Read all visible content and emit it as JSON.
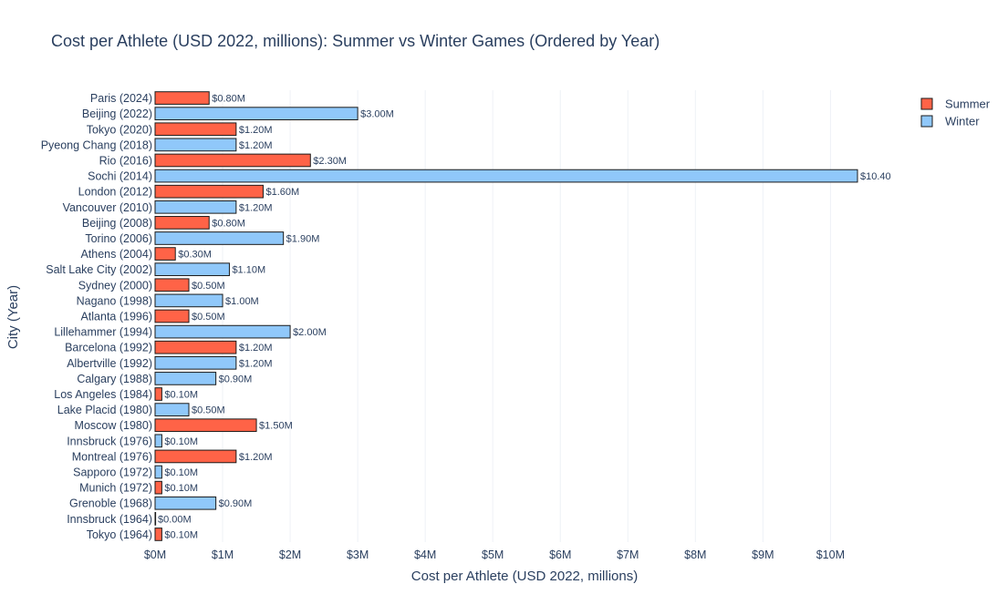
{
  "chart_data": {
    "type": "bar",
    "orientation": "horizontal",
    "title": "Cost per Athlete (USD 2022, millions): Summer vs Winter Games (Ordered by Year)",
    "xlabel": "Cost per Athlete (USD 2022, millions)",
    "ylabel": "City (Year)",
    "xlim": [
      0,
      10.4
    ],
    "xticks": [
      {
        "value": 0,
        "label": "$0M"
      },
      {
        "value": 1,
        "label": "$1M"
      },
      {
        "value": 2,
        "label": "$2M"
      },
      {
        "value": 3,
        "label": "$3M"
      },
      {
        "value": 4,
        "label": "$4M"
      },
      {
        "value": 5,
        "label": "$5M"
      },
      {
        "value": 6,
        "label": "$6M"
      },
      {
        "value": 7,
        "label": "$7M"
      },
      {
        "value": 8,
        "label": "$8M"
      },
      {
        "value": 9,
        "label": "$9M"
      },
      {
        "value": 10,
        "label": "$10M"
      }
    ],
    "legend_position": "top-right",
    "series": [
      {
        "name": "Summer",
        "color": "#ff6347"
      },
      {
        "name": "Winter",
        "color": "#90c8fa"
      }
    ],
    "bars": [
      {
        "category": "Paris (2024)",
        "series": "Summer",
        "value": 0.8,
        "label": "$0.80M"
      },
      {
        "category": "Beijing (2022)",
        "series": "Winter",
        "value": 3.0,
        "label": "$3.00M"
      },
      {
        "category": "Tokyo (2020)",
        "series": "Summer",
        "value": 1.2,
        "label": "$1.20M"
      },
      {
        "category": "Pyeong Chang (2018)",
        "series": "Winter",
        "value": 1.2,
        "label": "$1.20M"
      },
      {
        "category": "Rio (2016)",
        "series": "Summer",
        "value": 2.3,
        "label": "$2.30M"
      },
      {
        "category": "Sochi (2014)",
        "series": "Winter",
        "value": 10.4,
        "label": "$10.40"
      },
      {
        "category": "London (2012)",
        "series": "Summer",
        "value": 1.6,
        "label": "$1.60M"
      },
      {
        "category": "Vancouver (2010)",
        "series": "Winter",
        "value": 1.2,
        "label": "$1.20M"
      },
      {
        "category": "Beijing (2008)",
        "series": "Summer",
        "value": 0.8,
        "label": "$0.80M"
      },
      {
        "category": "Torino (2006)",
        "series": "Winter",
        "value": 1.9,
        "label": "$1.90M"
      },
      {
        "category": "Athens (2004)",
        "series": "Summer",
        "value": 0.3,
        "label": "$0.30M"
      },
      {
        "category": "Salt Lake City (2002)",
        "series": "Winter",
        "value": 1.1,
        "label": "$1.10M"
      },
      {
        "category": "Sydney (2000)",
        "series": "Summer",
        "value": 0.5,
        "label": "$0.50M"
      },
      {
        "category": "Nagano (1998)",
        "series": "Winter",
        "value": 1.0,
        "label": "$1.00M"
      },
      {
        "category": "Atlanta (1996)",
        "series": "Summer",
        "value": 0.5,
        "label": "$0.50M"
      },
      {
        "category": "Lillehammer (1994)",
        "series": "Winter",
        "value": 2.0,
        "label": "$2.00M"
      },
      {
        "category": "Barcelona (1992)",
        "series": "Summer",
        "value": 1.2,
        "label": "$1.20M"
      },
      {
        "category": "Albertville (1992)",
        "series": "Winter",
        "value": 1.2,
        "label": "$1.20M"
      },
      {
        "category": "Calgary (1988)",
        "series": "Winter",
        "value": 0.9,
        "label": "$0.90M"
      },
      {
        "category": "Los Angeles (1984)",
        "series": "Summer",
        "value": 0.1,
        "label": "$0.10M"
      },
      {
        "category": "Lake Placid (1980)",
        "series": "Winter",
        "value": 0.5,
        "label": "$0.50M"
      },
      {
        "category": "Moscow (1980)",
        "series": "Summer",
        "value": 1.5,
        "label": "$1.50M"
      },
      {
        "category": "Innsbruck (1976)",
        "series": "Winter",
        "value": 0.1,
        "label": "$0.10M"
      },
      {
        "category": "Montreal (1976)",
        "series": "Summer",
        "value": 1.2,
        "label": "$1.20M"
      },
      {
        "category": "Sapporo (1972)",
        "series": "Winter",
        "value": 0.1,
        "label": "$0.10M"
      },
      {
        "category": "Munich (1972)",
        "series": "Summer",
        "value": 0.1,
        "label": "$0.10M"
      },
      {
        "category": "Grenoble (1968)",
        "series": "Winter",
        "value": 0.9,
        "label": "$0.90M"
      },
      {
        "category": "Innsbruck (1964)",
        "series": "Winter",
        "value": 0.0,
        "label": "$0.00M"
      },
      {
        "category": "Tokyo (1964)",
        "series": "Summer",
        "value": 0.1,
        "label": "$0.10M"
      }
    ]
  }
}
